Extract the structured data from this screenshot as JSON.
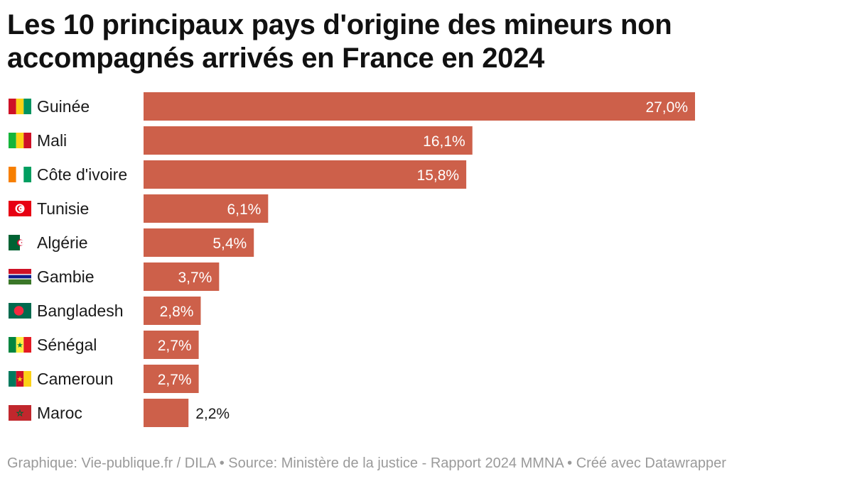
{
  "chart_data": {
    "type": "bar",
    "orientation": "horizontal",
    "title": "Les 10 principaux pays d'origine des mineurs non accompagnés arrivés en France en 2024",
    "categories": [
      "Guinée",
      "Mali",
      "Côte d'ivoire",
      "Tunisie",
      "Algérie",
      "Gambie",
      "Bangladesh",
      "Sénégal",
      "Cameroun",
      "Maroc"
    ],
    "values": [
      27.0,
      16.1,
      15.8,
      6.1,
      5.4,
      3.7,
      2.8,
      2.7,
      2.7,
      2.2
    ],
    "value_labels": [
      "27,0%",
      "16,1%",
      "15,8%",
      "6,1%",
      "5,4%",
      "3,7%",
      "2,8%",
      "2,7%",
      "2,7%",
      "2,2%"
    ],
    "flags": [
      "flag-guinea-icon",
      "flag-mali-icon",
      "flag-ivory-coast-icon",
      "flag-tunisia-icon",
      "flag-algeria-icon",
      "flag-gambia-icon",
      "flag-bangladesh-icon",
      "flag-senegal-icon",
      "flag-cameroon-icon",
      "flag-morocco-icon"
    ],
    "xlim": [
      0,
      27.0
    ],
    "bar_color": "#cd604a",
    "grid": false,
    "legend": "none"
  },
  "footer": "Graphique: Vie-publique.fr / DILA • Source: Ministère de la justice - Rapport 2024 MMNA • Créé avec Datawrapper"
}
